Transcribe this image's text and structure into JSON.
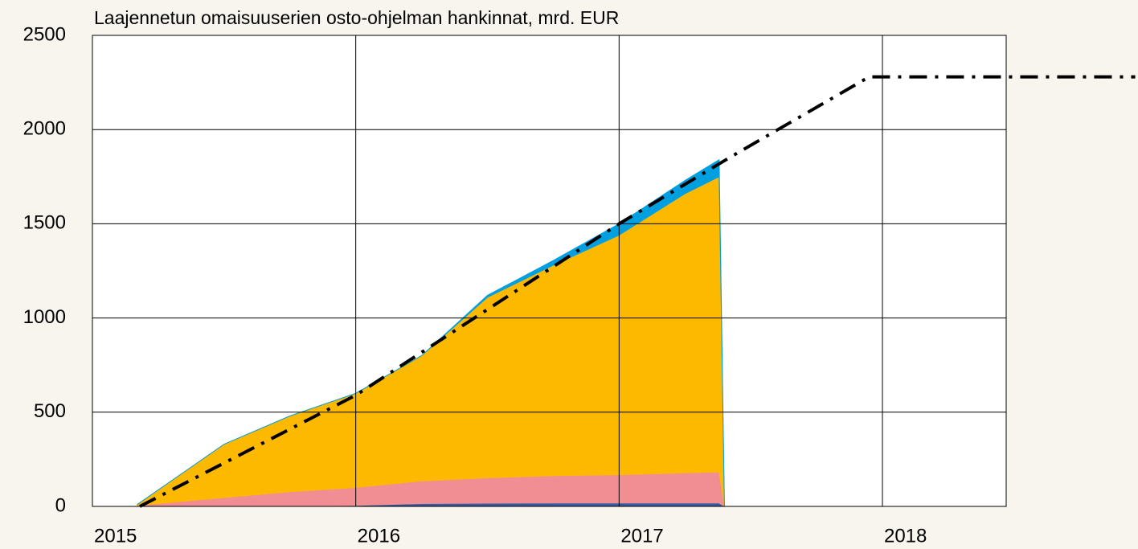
{
  "chart_data": {
    "type": "area",
    "title": "Laajennetun omaisuuserien osto-ohjelman hankinnat, mrd. EUR",
    "x": [
      2015.17,
      2015.5,
      2015.75,
      2016.0,
      2016.25,
      2016.5,
      2016.75,
      2017.0,
      2017.25,
      2017.38,
      2017.4
    ],
    "series": [
      {
        "color": "#3a5ba0",
        "values": [
          0,
          2,
          3,
          5,
          15,
          17,
          18,
          18,
          18,
          18,
          0
        ]
      },
      {
        "color": "#f08e94",
        "values": [
          5,
          45,
          75,
          95,
          120,
          135,
          145,
          150,
          160,
          165,
          0
        ]
      },
      {
        "color": "#fdb900",
        "values": [
          5,
          283,
          402,
          500,
          665,
          958,
          1117,
          1272,
          1482,
          1567,
          0
        ]
      },
      {
        "color": "#00a0e0",
        "values": [
          0,
          0,
          0,
          0,
          0,
          10,
          25,
          60,
          70,
          90,
          0
        ]
      },
      {
        "type": "line",
        "color": "#000000",
        "dash": "dash-dot",
        "x": [
          2015.18,
          2016.0,
          2017.0,
          2017.43,
          2017.95,
          2018.0,
          2018.96
        ],
        "values": [
          0,
          590,
          1500,
          1860,
          2280,
          2280,
          2280
        ]
      }
    ],
    "xlim": [
      2015,
      2018.47
    ],
    "xticks": [
      2015,
      2016,
      2017,
      2018
    ],
    "ylim": [
      0,
      2500
    ],
    "yticks": [
      0,
      500,
      1000,
      1500,
      2000,
      2500
    ],
    "grid": true
  }
}
